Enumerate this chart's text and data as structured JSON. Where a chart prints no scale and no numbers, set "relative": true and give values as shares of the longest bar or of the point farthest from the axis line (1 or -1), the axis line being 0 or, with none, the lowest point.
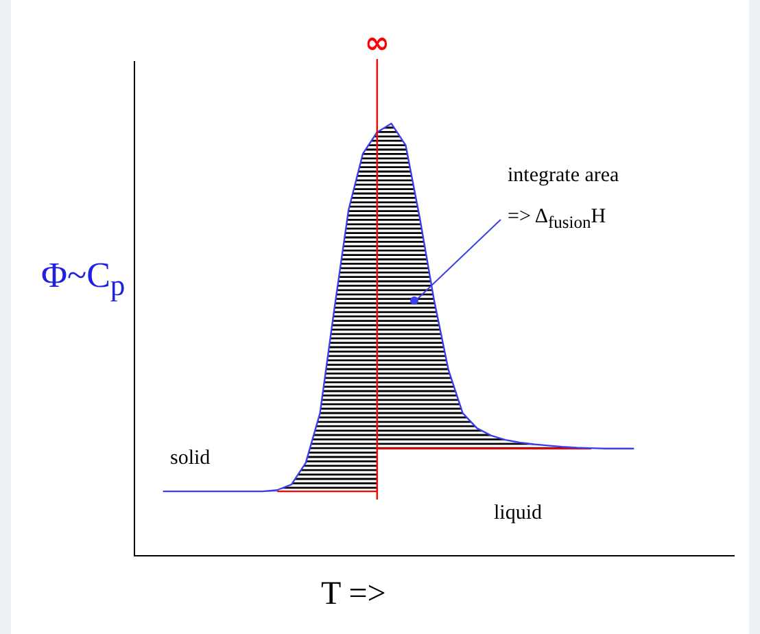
{
  "chart_data": {
    "type": "line",
    "relative": true,
    "xlabel": "T =>",
    "ylabel": "Φ~C$_{p}$",
    "categories": [
      null,
      null,
      null,
      null,
      null,
      null,
      null,
      null,
      null,
      null,
      null,
      null,
      null,
      null,
      null,
      null,
      null,
      null,
      null,
      null,
      null,
      null,
      null,
      null,
      null,
      null,
      null,
      null,
      null,
      null,
      null,
      null,
      null,
      null,
      null,
      null,
      null,
      null,
      null,
      null,
      null,
      null,
      null
    ],
    "series": [
      {
        "color": "#3c3cf0",
        "values": [
          null,
          null,
          0.149,
          0.149,
          0.149,
          0.149,
          0.149,
          0.149,
          0.149,
          0.149,
          0.152,
          0.165,
          0.215,
          0.33,
          0.57,
          0.8,
          0.93,
          0.98,
          1.0,
          0.95,
          0.78,
          0.59,
          0.43,
          0.33,
          0.295,
          0.278,
          0.268,
          0.262,
          0.258,
          0.255,
          0.252,
          0.25,
          0.249,
          0.248,
          0.248,
          0.248,
          null,
          null,
          null,
          null,
          null,
          null,
          null
        ]
      },
      {
        "color": "#ff0000",
        "values": [
          null,
          null,
          null,
          null,
          null,
          null,
          null,
          null,
          null,
          null,
          0.149,
          0.149,
          0.149,
          0.149,
          0.149,
          0.149,
          0.149,
          0.149,
          null,
          null,
          null,
          null,
          null,
          null,
          null,
          null,
          null,
          null,
          null,
          null,
          null,
          null,
          null,
          null,
          null,
          null,
          null,
          null,
          null,
          null,
          null,
          null,
          null
        ]
      },
      {
        "color": "#ff0000",
        "values": [
          null,
          null,
          null,
          null,
          null,
          null,
          null,
          null,
          null,
          null,
          null,
          null,
          null,
          null,
          null,
          null,
          null,
          0.248,
          0.248,
          0.248,
          0.248,
          0.248,
          0.248,
          0.248,
          0.248,
          0.248,
          0.248,
          0.248,
          0.248,
          0.248,
          0.248,
          0.248,
          0.248,
          null,
          null,
          null,
          null,
          null,
          null,
          null,
          null,
          null,
          null
        ]
      }
    ],
    "annotations": [
      "∞",
      "integrate area",
      "=> Δ$_{fusion}$H",
      "solid",
      "liquid"
    ],
    "grid": false,
    "legend": false,
    "marker": "none",
    "line_style": "solid"
  }
}
